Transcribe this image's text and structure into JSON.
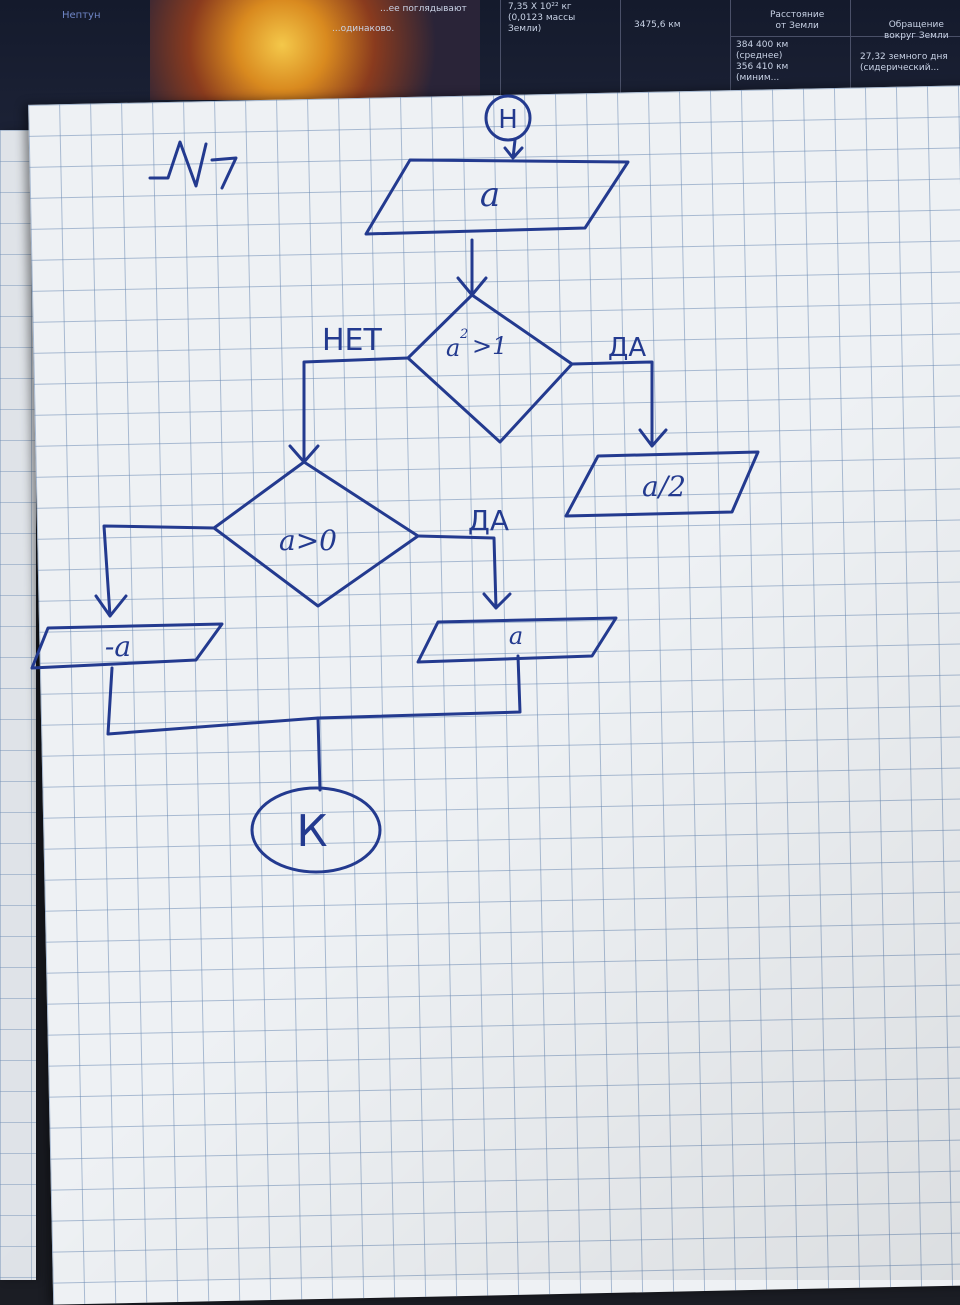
{
  "poster": {
    "planet_label": "Нептун",
    "same_side_text": "...одинаково.",
    "watch_text": "...ее поглядывают",
    "mass_text": "7,35 X 10²² кг\n(0,0123 массы\nЗемли)",
    "radius_text": "3475,6 км",
    "distance_header": "Расстояние\nот Земли",
    "distance_values": "384 400 км\n(среднее)\n356 410 км\n(миним...",
    "orbit_header": "Обращение\nвокруг Земли",
    "orbit_values": "27,32 земного дня\n(сидерический..."
  },
  "flowchart": {
    "task_number": "№7",
    "start_label": "Н",
    "input_label": "a",
    "condition1": "a²>1",
    "condition1_base": "a",
    "condition1_exp": "2",
    "condition1_rest": ">1",
    "condition1_yes": "ДА",
    "condition1_no": "НЕТ",
    "output_yes1": "a/2",
    "condition2": "a>0",
    "condition2_yes": "ДА",
    "output_yes2": "a",
    "output_no2": "-a",
    "end_label": "К"
  },
  "colors": {
    "ink": "#233a8f",
    "paper": "#eef1f4",
    "grid": "#6e8cb4"
  }
}
